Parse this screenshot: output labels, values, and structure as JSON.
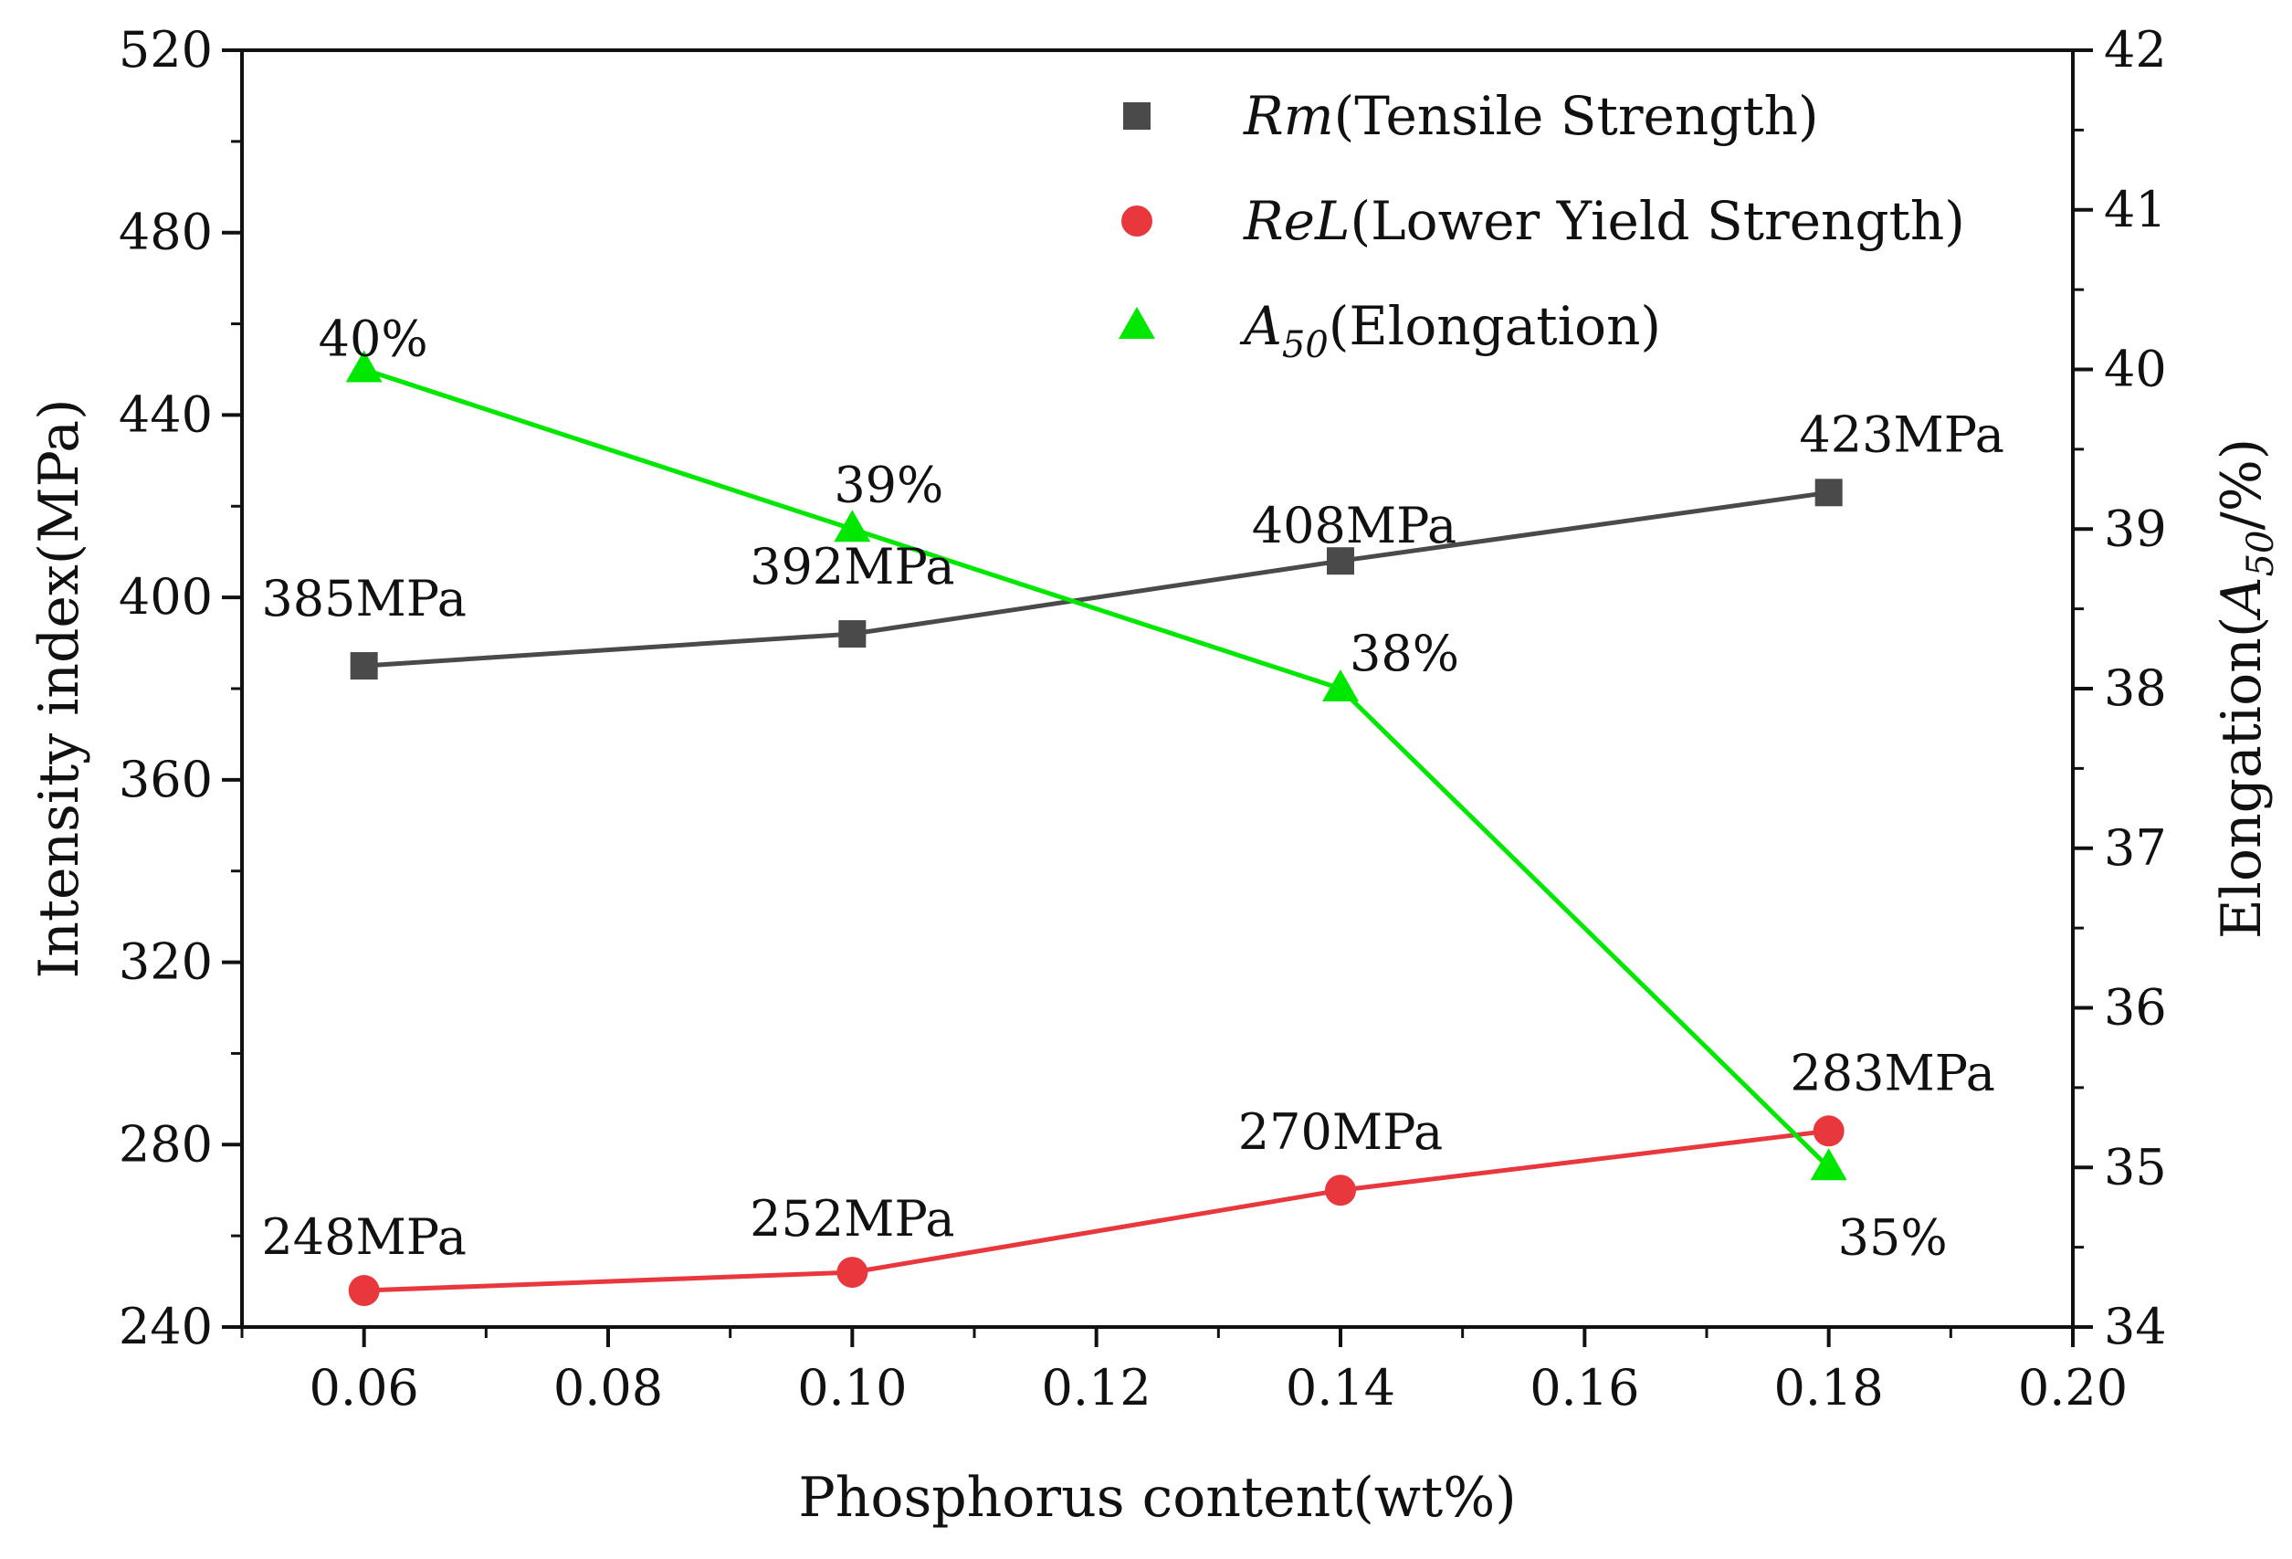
{
  "chart_data": {
    "type": "line",
    "xlabel": "Phosphorus content(wt%)",
    "ylabel": "Intensity index(MPa)",
    "y2label": {
      "prefix": "Elongation(",
      "symbol": "A",
      "sub": "50",
      "suffix": "/%)"
    },
    "xlim": [
      0.05,
      0.2
    ],
    "ylim": [
      240,
      520
    ],
    "y2lim": [
      34,
      42
    ],
    "x_ticks": [
      "0.06",
      "0.08",
      "0.10",
      "0.12",
      "0.14",
      "0.16",
      "0.18",
      "0.20"
    ],
    "y_ticks": [
      "240",
      "280",
      "320",
      "360",
      "400",
      "440",
      "480",
      "520"
    ],
    "y2_ticks": [
      "34",
      "35",
      "36",
      "37",
      "38",
      "39",
      "40",
      "41",
      "42"
    ],
    "x": [
      0.06,
      0.1,
      0.14,
      0.18
    ],
    "legend_position": "top-right",
    "grid": false,
    "series": [
      {
        "id": "rm",
        "name_italic": "Rm",
        "name_sub": "",
        "name_rest": "(Tensile Strength)",
        "axis": "left",
        "marker": "square",
        "color": "#4a4a4a",
        "values": [
          385,
          392,
          408,
          423
        ],
        "labels": [
          "385MPa",
          "392MPa",
          "408MPa",
          "423MPa"
        ]
      },
      {
        "id": "rel",
        "name_italic": "ReL",
        "name_sub": "",
        "name_rest": "(Lower Yield Strength)",
        "axis": "left",
        "marker": "circle",
        "color": "#e8383d",
        "values": [
          248,
          252,
          270,
          283
        ],
        "labels": [
          "248MPa",
          "252MPa",
          "270MPa",
          "283MPa"
        ]
      },
      {
        "id": "a50",
        "name_italic": "A",
        "name_sub": "50",
        "name_rest": "(Elongation)",
        "axis": "right",
        "marker": "triangle",
        "color": "#00e800",
        "values": [
          40,
          39,
          38,
          35
        ],
        "labels": [
          "40%",
          "39%",
          "38%",
          "35%"
        ]
      }
    ]
  }
}
